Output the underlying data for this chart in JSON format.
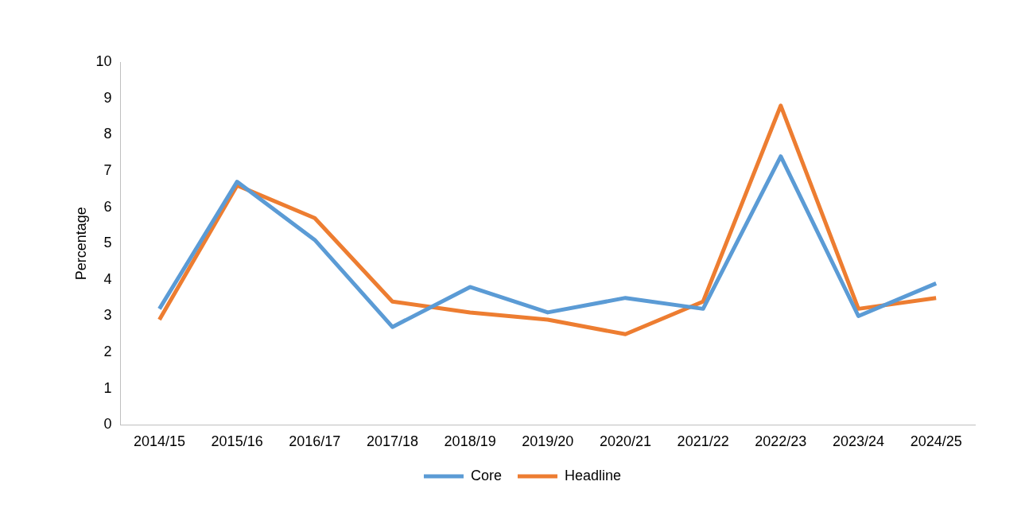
{
  "chart_data": {
    "type": "line",
    "ylabel": "Percentage",
    "categories": [
      "2014/15",
      "2015/16",
      "2016/17",
      "2017/18",
      "2018/19",
      "2019/20",
      "2020/21",
      "2021/22",
      "2022/23",
      "2023/24",
      "2024/25"
    ],
    "series": [
      {
        "name": "Core",
        "color": "#5b9bd5",
        "values": [
          3.2,
          6.7,
          5.1,
          2.7,
          3.8,
          3.1,
          3.5,
          3.2,
          7.4,
          3.0,
          3.9
        ]
      },
      {
        "name": "Headline",
        "color": "#ed7d31",
        "values": [
          2.9,
          6.6,
          5.7,
          3.4,
          3.1,
          2.9,
          2.5,
          3.4,
          8.8,
          3.2,
          3.5
        ]
      }
    ],
    "ylim": [
      0,
      10
    ],
    "yticks": [
      0,
      1,
      2,
      3,
      4,
      5,
      6,
      7,
      8,
      9,
      10
    ],
    "grid": false,
    "legend": "bottom",
    "marker": "none",
    "line_style": "solid"
  }
}
